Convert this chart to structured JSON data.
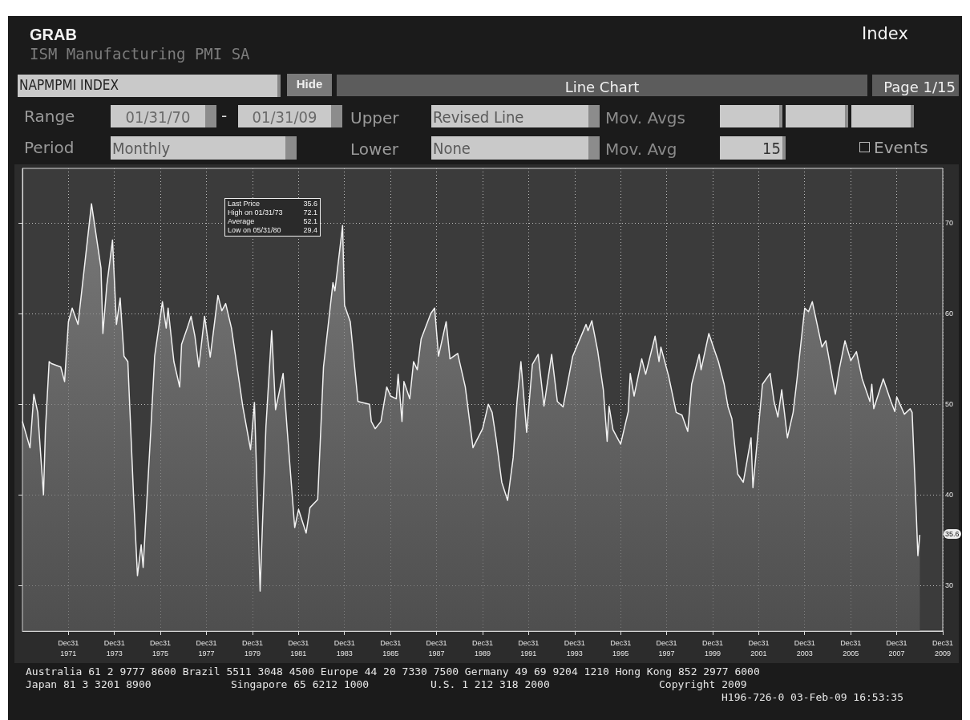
{
  "chart_data": {
    "type": "area",
    "title": "ISM Manufacturing PMI SA",
    "color": "#f2f2f2",
    "x": [
      "1970-01",
      "1970-05",
      "1970-07",
      "1970-09",
      "1970-12",
      "1971-01",
      "1971-03",
      "1971-04",
      "1971-09",
      "1971-11",
      "1972-01",
      "1972-03",
      "1972-06",
      "1973-01",
      "1973-06",
      "1973-07",
      "1973-09",
      "1973-12",
      "1974-02",
      "1974-04",
      "1974-06",
      "1974-08",
      "1974-11",
      "1975-01",
      "1975-03",
      "1975-04",
      "1975-08",
      "1975-10",
      "1976-02",
      "1976-04",
      "1976-05",
      "1976-08",
      "1976-11",
      "1976-12",
      "1977-03",
      "1977-05",
      "1977-07",
      "1977-09",
      "1977-12",
      "1978-03",
      "1978-07",
      "1978-09",
      "1978-11",
      "1979-02",
      "1979-08",
      "1979-12",
      "1980-02",
      "1980-05",
      "1980-08",
      "1980-11",
      "1981-01",
      "1981-05",
      "1981-07",
      "1981-11",
      "1982-01",
      "1982-05",
      "1982-07",
      "1982-11",
      "1983-02",
      "1983-07",
      "1983-08",
      "1983-12",
      "1984-01",
      "1984-04",
      "1984-08",
      "1985-02",
      "1985-03",
      "1985-05",
      "1985-08",
      "1985-11",
      "1986-01",
      "1986-04",
      "1986-05",
      "1986-07",
      "1986-08",
      "1986-11",
      "1987-01",
      "1987-03",
      "1987-05",
      "1987-10",
      "1987-12",
      "1988-02",
      "1988-06",
      "1988-08",
      "1988-12",
      "1989-04",
      "1989-08",
      "1990-01",
      "1990-04",
      "1990-06",
      "1990-08",
      "1990-11",
      "1991-02",
      "1991-05",
      "1991-07",
      "1991-09",
      "1991-12",
      "1992-03",
      "1992-06",
      "1992-09",
      "1993-01",
      "1993-04",
      "1993-07",
      "1993-12",
      "1994-07",
      "1994-08",
      "1994-10",
      "1995-01",
      "1995-04",
      "1995-06",
      "1995-07",
      "1995-09",
      "1996-01",
      "1996-05",
      "1996-06",
      "1996-08",
      "1996-12",
      "1997-02",
      "1997-07",
      "1997-09",
      "1997-10",
      "1998-02",
      "1998-06",
      "1998-09",
      "1998-12",
      "1999-02",
      "1999-06",
      "1999-07",
      "1999-11",
      "2000-02",
      "2000-04",
      "2000-07",
      "2000-09",
      "2000-11",
      "2001-02",
      "2001-05",
      "2001-09",
      "2001-10",
      "2002-03",
      "2002-07",
      "2002-09",
      "2002-11",
      "2003-01",
      "2003-04",
      "2003-07",
      "2003-09",
      "2004-01",
      "2004-03",
      "2004-05",
      "2004-10",
      "2004-12",
      "2005-05",
      "2005-07",
      "2005-10",
      "2006-01",
      "2006-04",
      "2006-07",
      "2006-11",
      "2006-12",
      "2007-01",
      "2007-06",
      "2007-10",
      "2007-12",
      "2008-01",
      "2008-05",
      "2008-08",
      "2008-09",
      "2008-11",
      "2008-12",
      "2009-01"
    ],
    "values": [
      48.1,
      45.2,
      51.1,
      49.1,
      40.0,
      47.2,
      54.7,
      54.5,
      54.1,
      52.5,
      59.1,
      60.6,
      58.8,
      72.1,
      65.0,
      57.8,
      63.1,
      68.1,
      58.8,
      61.7,
      55.3,
      54.7,
      39.7,
      31.1,
      34.5,
      32.0,
      47.2,
      55.3,
      61.3,
      58.4,
      60.6,
      54.7,
      51.9,
      56.6,
      58.4,
      59.7,
      57.5,
      54.1,
      59.7,
      55.2,
      62.0,
      60.3,
      61.1,
      58.4,
      49.7,
      45.0,
      50.2,
      29.4,
      47.5,
      58.1,
      49.4,
      53.4,
      47.5,
      36.4,
      38.4,
      35.8,
      38.6,
      39.5,
      54.1,
      63.4,
      62.5,
      69.7,
      60.9,
      59.1,
      50.3,
      50.0,
      48.1,
      47.3,
      48.1,
      51.9,
      50.9,
      50.6,
      53.3,
      48.1,
      52.5,
      50.6,
      54.7,
      53.8,
      57.2,
      60.0,
      60.6,
      55.3,
      59.1,
      55.0,
      55.6,
      51.9,
      45.2,
      47.3,
      50.0,
      49.1,
      46.3,
      41.4,
      39.4,
      44.1,
      50.3,
      54.7,
      46.9,
      54.4,
      55.5,
      49.8,
      55.5,
      50.3,
      49.7,
      55.3,
      58.8,
      58.1,
      59.2,
      55.9,
      51.6,
      45.9,
      49.8,
      47.2,
      45.6,
      49.2,
      53.4,
      50.9,
      55.0,
      53.3,
      57.5,
      54.7,
      56.3,
      53.1,
      49.1,
      48.8,
      47.0,
      52.2,
      55.5,
      53.8,
      57.8,
      55.9,
      54.7,
      52.2,
      49.7,
      48.4,
      42.3,
      41.4,
      46.3,
      40.8,
      52.2,
      53.4,
      50.3,
      48.6,
      51.6,
      46.3,
      49.1,
      52.8,
      60.6,
      60.2,
      61.3,
      56.3,
      57.0,
      51.1,
      53.8,
      57.0,
      54.8,
      55.8,
      52.8,
      50.3,
      52.2,
      49.5,
      52.8,
      50.3,
      49.2,
      50.8,
      48.9,
      49.5,
      49.1,
      38.8,
      33.3,
      35.6
    ],
    "xlim": [
      "1970-01-01",
      "2009-12-31"
    ],
    "xticks": [
      {
        "value": "1971-12-31",
        "label": "Dec31\n1971"
      },
      {
        "value": "1973-12-31",
        "label": "Dec31\n1973"
      },
      {
        "value": "1975-12-31",
        "label": "Dec31\n1975"
      },
      {
        "value": "1977-12-31",
        "label": "Dec31\n1977"
      },
      {
        "value": "1979-12-31",
        "label": "Dec31\n1979"
      },
      {
        "value": "1981-12-31",
        "label": "Dec31\n1981"
      },
      {
        "value": "1983-12-31",
        "label": "Dec31\n1983"
      },
      {
        "value": "1985-12-31",
        "label": "Dec31\n1985"
      },
      {
        "value": "1987-12-31",
        "label": "Dec31\n1987"
      },
      {
        "value": "1989-12-31",
        "label": "Dec31\n1989"
      },
      {
        "value": "1991-12-31",
        "label": "Dec31\n1991"
      },
      {
        "value": "1993-12-31",
        "label": "Dec31\n1993"
      },
      {
        "value": "1995-12-31",
        "label": "Dec31\n1995"
      },
      {
        "value": "1997-12-31",
        "label": "Dec31\n1997"
      },
      {
        "value": "1999-12-31",
        "label": "Dec31\n1999"
      },
      {
        "value": "2001-12-31",
        "label": "Dec31\n2001"
      },
      {
        "value": "2003-12-31",
        "label": "Dec31\n2003"
      },
      {
        "value": "2005-12-31",
        "label": "Dec31\n2005"
      },
      {
        "value": "2007-12-31",
        "label": "Dec31\n2007"
      },
      {
        "value": "2009-12-31",
        "label": "Dec31\n2009"
      }
    ],
    "ylim": [
      25,
      76
    ],
    "yticks": [
      30,
      40,
      50,
      60,
      70
    ],
    "grid": true,
    "annotations": [
      "GRAB",
      "Index",
      "NAPMPMI INDEX",
      "Hide",
      "Line Chart",
      "Page 1/15",
      "Range",
      "01/31/70",
      "-",
      "01/31/09",
      "Upper",
      "Revised Line",
      "Mov. Avgs",
      "Period",
      "Monthly",
      "Lower",
      "None",
      "Mov. Avg",
      "15",
      "Events",
      "Last Price",
      "35.6",
      "High on 01/31/73",
      "72.1",
      "Average",
      "52.1",
      "Low on 05/31/80",
      "29.4",
      "35.6",
      "Australia 61 2 9777 8600 Brazil 5511 3048 4500 Europe 44 20 7330 7500 Germany 49 69 9204 1210 Hong Kong 852 2977 6000",
      "Japan 81 3 3201 8900",
      "Singapore 65 6212 1000",
      "U.S. 1 212 318 2000",
      "Copyright 2009",
      "H196-726-0 03-Feb-09 16:53:35"
    ]
  }
}
